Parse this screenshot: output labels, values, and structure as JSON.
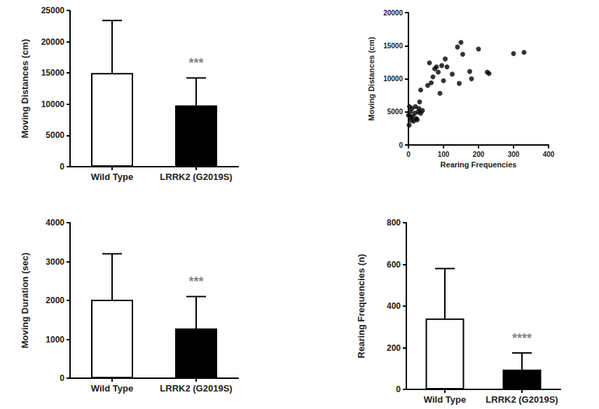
{
  "chart_data": [
    {
      "type": "bar",
      "ylabel": "Moving Distances (cm)",
      "categories": [
        "Wild Type",
        "LRRK2 (G2019S)"
      ],
      "values": [
        15000,
        9800
      ],
      "errors": [
        8400,
        4400
      ],
      "colors": [
        "#ffffff",
        "#000000"
      ],
      "ylim": [
        0,
        25000
      ],
      "yticks": [
        0,
        5000,
        10000,
        15000,
        20000,
        25000
      ],
      "annotation": {
        "text": "***",
        "category": "LRRK2 (G2019S)"
      }
    },
    {
      "type": "scatter",
      "xlabel": "Rearing Frequencies",
      "ylabel": "Moving Distances (cm)",
      "x": [
        0,
        2,
        3,
        5,
        5,
        8,
        10,
        12,
        15,
        18,
        20,
        22,
        25,
        28,
        30,
        32,
        35,
        35,
        40,
        55,
        60,
        65,
        70,
        75,
        80,
        85,
        90,
        95,
        100,
        105,
        110,
        125,
        140,
        145,
        150,
        155,
        175,
        180,
        200,
        225,
        230,
        300,
        330
      ],
      "y": [
        4500,
        3000,
        5800,
        4200,
        5000,
        3700,
        5500,
        4300,
        3600,
        4800,
        5800,
        4000,
        3800,
        5000,
        5500,
        6500,
        4800,
        8300,
        5200,
        9000,
        12400,
        9400,
        10300,
        11500,
        11800,
        11000,
        7800,
        12000,
        9700,
        13000,
        11800,
        10700,
        14800,
        9300,
        15500,
        13700,
        11100,
        10000,
        14500,
        11000,
        10800,
        13800,
        14000
      ],
      "color": "#000000",
      "marker": "circle",
      "xlim": [
        0,
        400
      ],
      "xticks": [
        0,
        100,
        200,
        300,
        400
      ],
      "ylim": [
        0,
        20000
      ],
      "yticks": [
        0,
        5000,
        10000,
        15000,
        20000
      ]
    },
    {
      "type": "bar",
      "ylabel": "Moving Duration (sec)",
      "categories": [
        "Wild Type",
        "LRRK2 (G2019S)"
      ],
      "values": [
        2020,
        1280
      ],
      "errors": [
        1180,
        820
      ],
      "colors": [
        "#ffffff",
        "#000000"
      ],
      "ylim": [
        0,
        4000
      ],
      "yticks": [
        0,
        1000,
        2000,
        3000,
        4000
      ],
      "annotation": {
        "text": "***",
        "category": "LRRK2 (G2019S)"
      }
    },
    {
      "type": "bar",
      "ylabel": "Rearing Frequencies (n)",
      "categories": [
        "Wild Type",
        "LRRK2 (G2019S)"
      ],
      "values": [
        340,
        95
      ],
      "errors": [
        240,
        80
      ],
      "colors": [
        "#ffffff",
        "#000000"
      ],
      "ylim": [
        0,
        800
      ],
      "yticks": [
        0,
        200,
        400,
        600,
        800
      ],
      "annotation": {
        "text": "****",
        "category": "LRRK2 (G2019S)"
      }
    }
  ]
}
